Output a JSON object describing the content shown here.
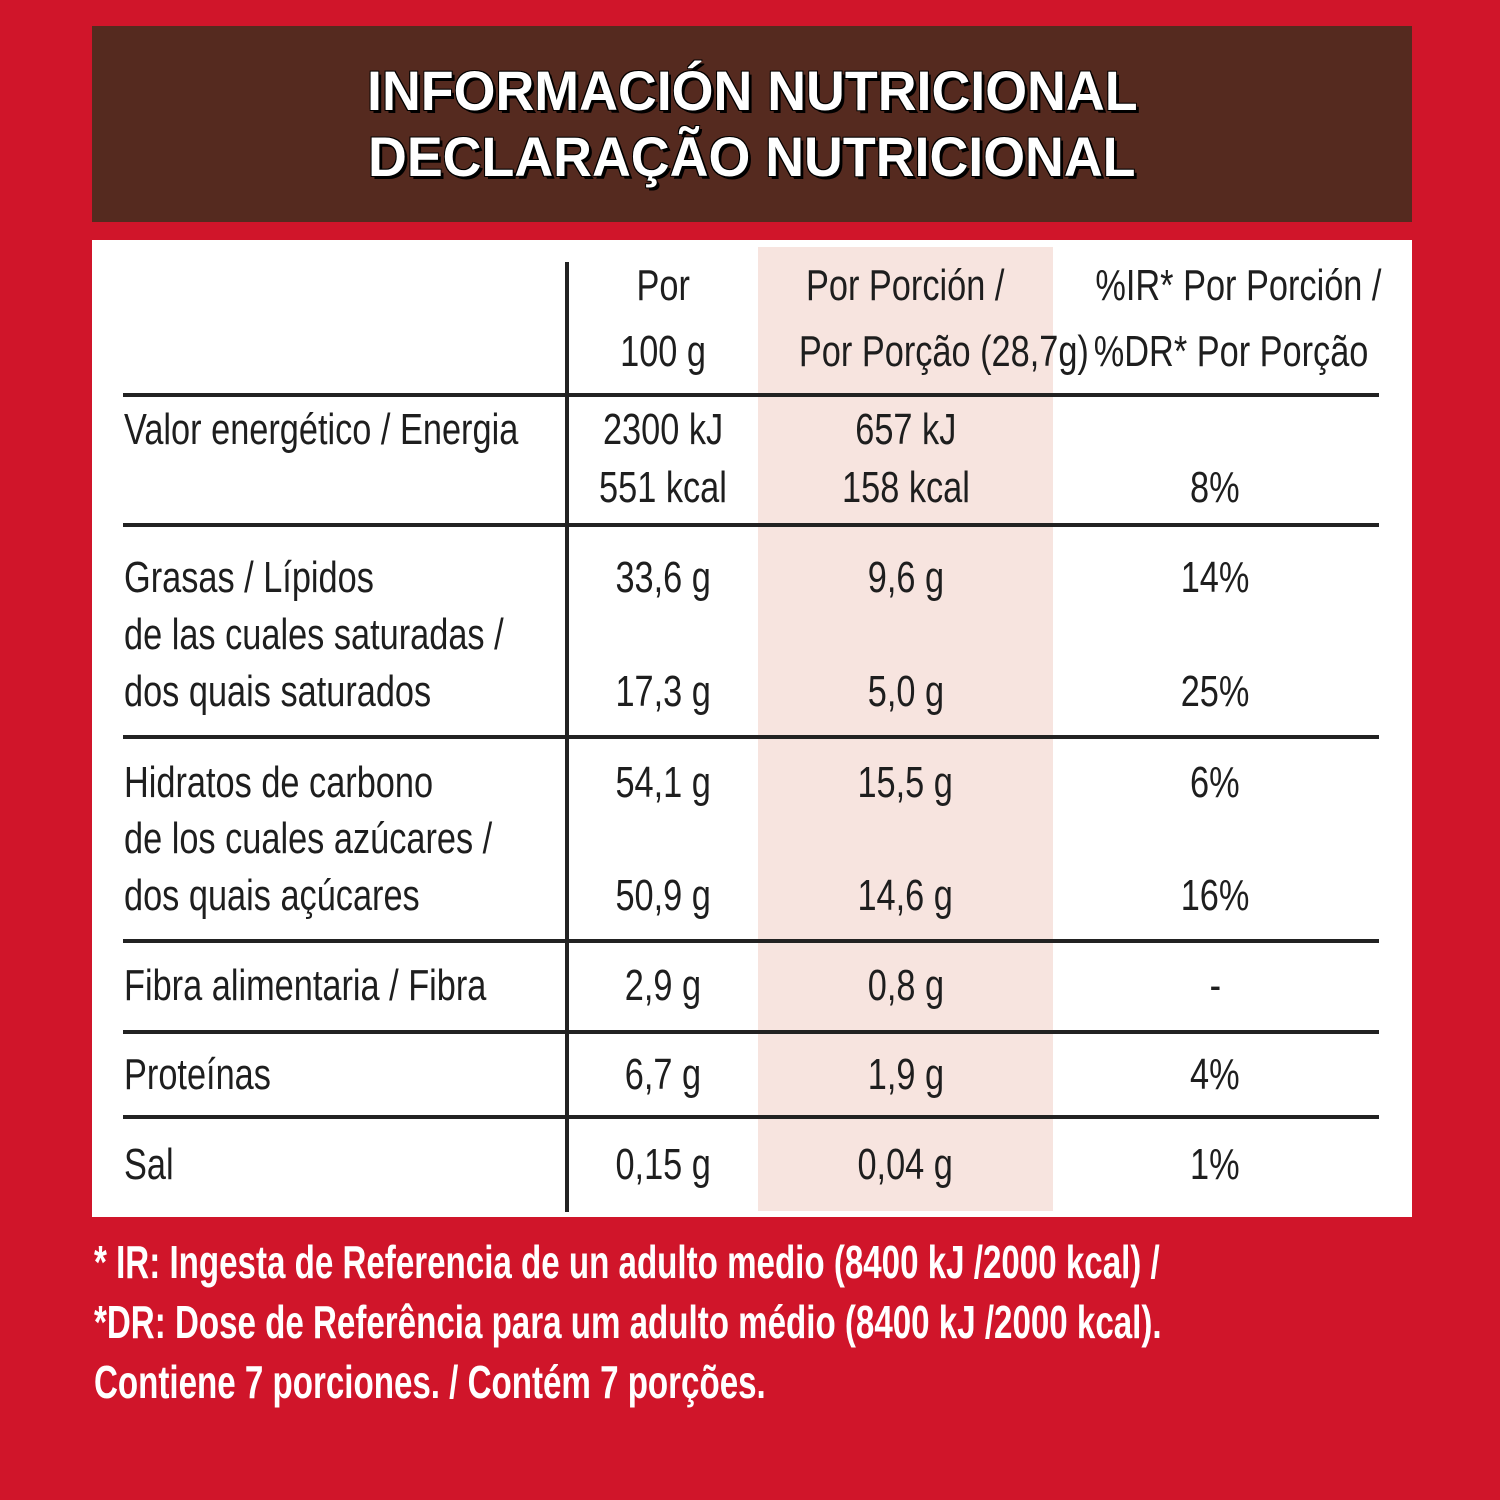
{
  "header": {
    "title_es": "INFORMACIÓN NUTRICIONAL",
    "title_pt": "DECLARAÇÃO NUTRICIONAL"
  },
  "columns": {
    "per100_l1": "Por",
    "per100_l2": "100 g",
    "portion_l1": "Por Porción /",
    "portion_l2": "Por Porção (28,7g)",
    "ir_l1": "%IR* Por Porción /",
    "ir_l2": "%DR* Por Porção"
  },
  "rows": {
    "energy": {
      "label": "Valor energético / Energia",
      "p100_kj": "2300 kJ",
      "p100_kcal": "551 kcal",
      "portion_kj": "657 kJ",
      "portion_kcal": "158 kcal",
      "ir": "8%"
    },
    "fat": {
      "label": "Grasas / Lípidos",
      "p100": "33,6 g",
      "portion": "9,6 g",
      "ir": "14%"
    },
    "sat": {
      "label_l1": "de las cuales saturadas /",
      "label_l2": "dos quais saturados",
      "p100": "17,3 g",
      "portion": "5,0 g",
      "ir": "25%"
    },
    "carb": {
      "label": "Hidratos de carbono",
      "p100": "54,1 g",
      "portion": "15,5 g",
      "ir": "6%"
    },
    "sugar": {
      "label_l1": "de los cuales azúcares /",
      "label_l2": "dos quais açúcares",
      "p100": "50,9 g",
      "portion": "14,6 g",
      "ir": "16%"
    },
    "fibre": {
      "label": "Fibra alimentaria / Fibra",
      "p100": "2,9 g",
      "portion": "0,8 g",
      "ir": "-"
    },
    "protein": {
      "label": "Proteínas",
      "p100": "6,7 g",
      "portion": "1,9 g",
      "ir": "4%"
    },
    "salt": {
      "label": "Sal",
      "p100": "0,15 g",
      "portion": "0,04 g",
      "ir": "1%"
    }
  },
  "footer": {
    "line1": "* IR: Ingesta de Referencia de un adulto medio (8400 kJ /2000 kcal) /",
    "line2": "*DR: Dose de Referência para um adulto médio (8400 kJ /2000 kcal).",
    "line3": "Contiene 7 porciones. / Contém 7 porções."
  },
  "colors": {
    "background": "#d0152a",
    "header": "#552a1f",
    "highlight_column": "#f7e4df"
  }
}
